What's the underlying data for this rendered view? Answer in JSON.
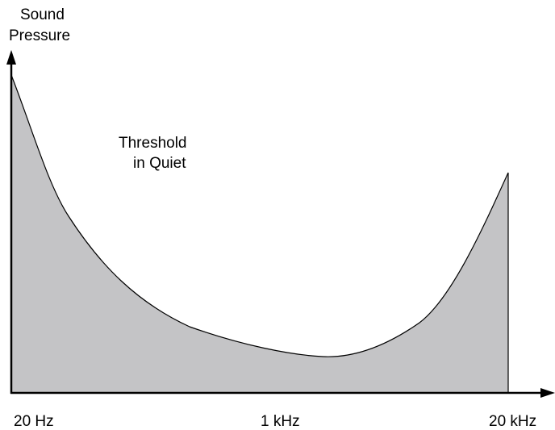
{
  "y_axis_label": {
    "line1": "Sound",
    "line2": "Pressure"
  },
  "curve_label": {
    "line1": "Threshold",
    "line2": "in Quiet"
  },
  "x_ticks": [
    "20 Hz",
    "1 kHz",
    "20 kHz"
  ],
  "colors": {
    "fill": "#c4c4c6",
    "stroke": "#000000",
    "background": "#ffffff"
  }
}
